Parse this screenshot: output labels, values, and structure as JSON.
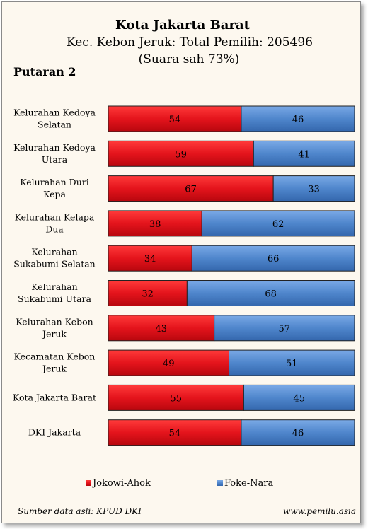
{
  "header": {
    "title": "Kota Jakarta Barat",
    "subtitle": "Kec. Kebon Jeruk: Total Pemilih: 205496",
    "note": "(Suara sah 73%)",
    "round": "Putaran 2"
  },
  "footer": {
    "source": "Sumber data asli: KPUD DKI",
    "website": "www.pemilu.asia"
  },
  "colors": {
    "jokowi": "#e4141c",
    "foke": "#4f86cc"
  },
  "chart_data": {
    "type": "bar",
    "orientation": "horizontal",
    "stacked": true,
    "percent": true,
    "xlim": [
      0,
      100
    ],
    "grid": false,
    "legend_position": "bottom",
    "categories": [
      [
        "Kelurahan Kedoya",
        "Selatan"
      ],
      [
        "Kelurahan Kedoya",
        "Utara"
      ],
      [
        "Kelurahan Duri",
        "Kepa"
      ],
      [
        "Kelurahan Kelapa",
        "Dua"
      ],
      [
        "Kelurahan",
        "Sukabumi Selatan"
      ],
      [
        "Kelurahan",
        "Sukabumi Utara"
      ],
      [
        "Kelurahan Kebon",
        "Jeruk"
      ],
      [
        "Kecamatan Kebon",
        "Jeruk"
      ],
      [
        "Kota Jakarta Barat"
      ],
      [
        "DKI Jakarta"
      ]
    ],
    "series": [
      {
        "name": "Jokowi-Ahok",
        "values": [
          54,
          59,
          67,
          38,
          34,
          32,
          43,
          49,
          55,
          54
        ]
      },
      {
        "name": "Foke-Nara",
        "values": [
          46,
          41,
          33,
          62,
          66,
          68,
          57,
          51,
          45,
          46
        ]
      }
    ]
  }
}
